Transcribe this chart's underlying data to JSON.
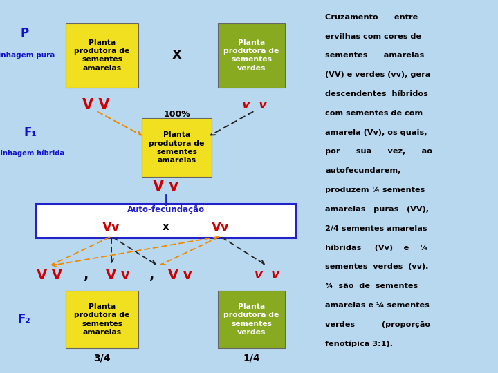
{
  "bg_color": "#b8d8f0",
  "panel_bg": "#e8f4ff",
  "white": "#ffffff",
  "yellow_box_color": "#f0e020",
  "green_box_color": "#88aa20",
  "blue_border_color": "#2222cc",
  "label_color": "#1111cc",
  "red_V_color": "#cc0000",
  "orange_arrow_color": "#ee8800",
  "dark_arrow_color": "#222222",
  "right_panel_bg": "#c8e0f8",
  "right_text_lines": [
    "Cruzamento      entre",
    "ervilhas com cores de",
    "sementes      amarelas",
    "(VV) e verdes (vv), gera",
    "descendentes  híbridos",
    "com sementes de com",
    "amarela (Vv), os quais,",
    "por      sua      vez,      ao",
    "autofecundarem,",
    "produzem ¼ sementes",
    "amarelas   puras   (VV),",
    "2/4 sementes amarelas",
    "híbridas     (Vv)    e    ¼",
    "sementes  verdes  (vv).",
    "¾  são  de  sementes",
    "amarelas e ¼ sementes",
    "verdes          (proporção",
    "fenotípica 3:1)."
  ]
}
